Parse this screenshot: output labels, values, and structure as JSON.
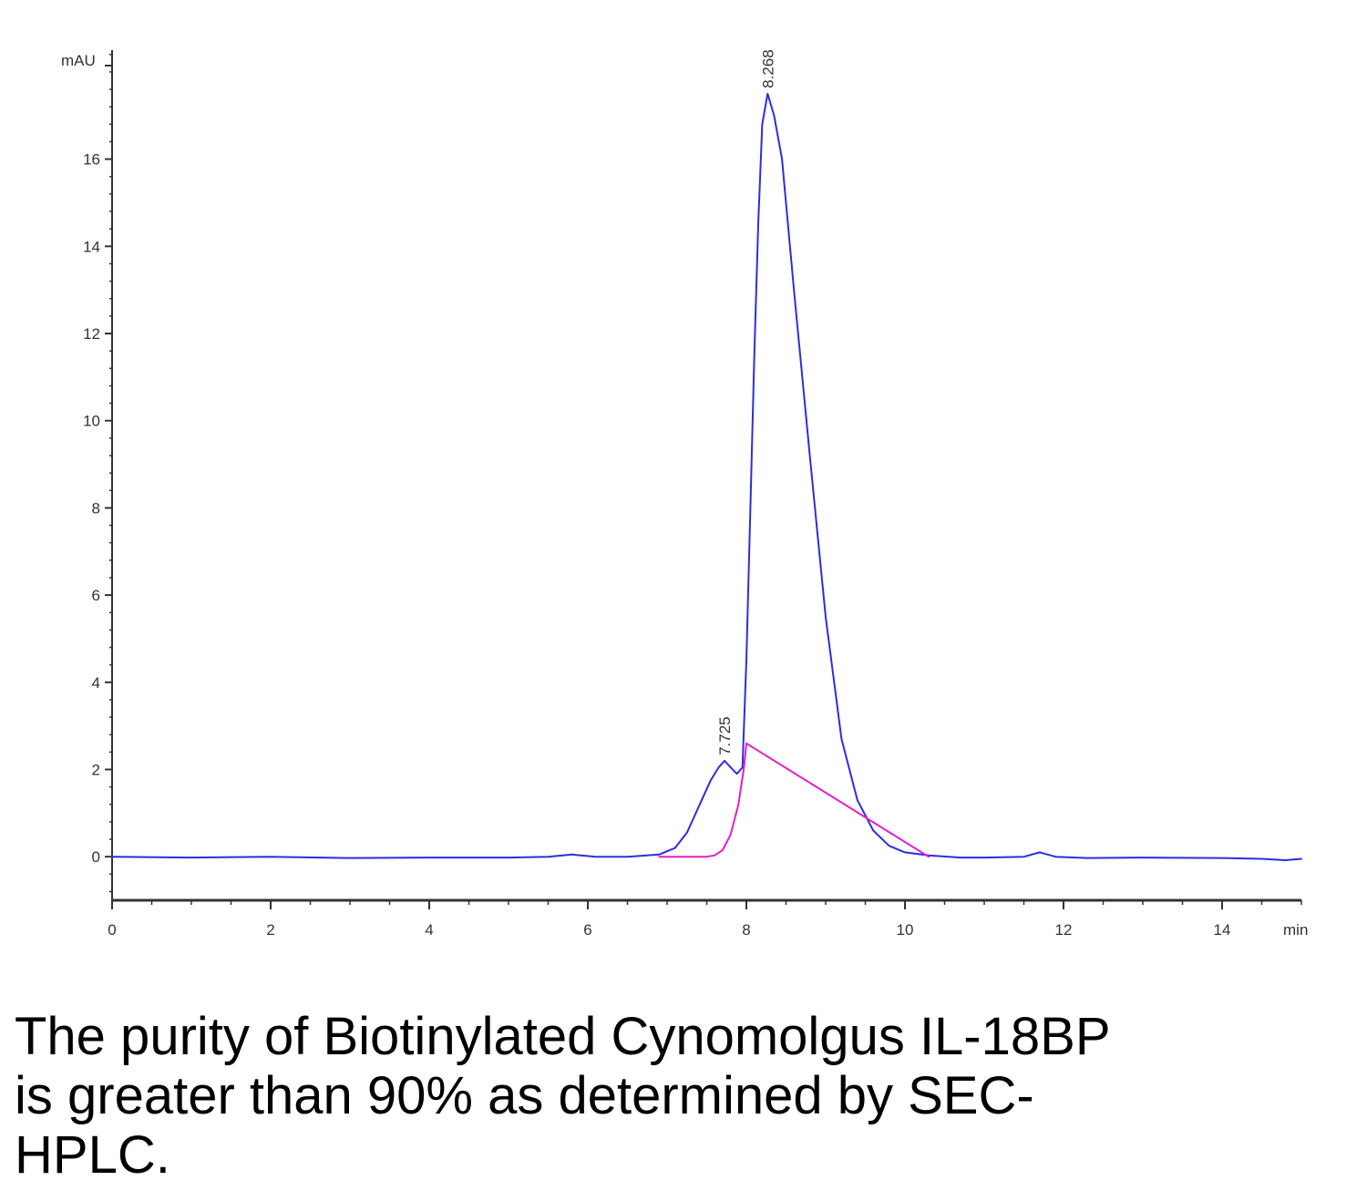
{
  "chart_data": {
    "type": "line",
    "x_unit": "min",
    "y_unit": "mAU",
    "xlim": [
      0,
      15
    ],
    "ylim": [
      -1,
      18.5
    ],
    "x_ticks": [
      0,
      2,
      4,
      6,
      8,
      10,
      12,
      14
    ],
    "y_ticks": [
      0,
      2,
      4,
      6,
      8,
      10,
      12,
      14,
      16
    ],
    "grid": false,
    "colors": {
      "trace": "#2d2de0",
      "baseline": "#e020c8",
      "axis": "#333333"
    },
    "series": [
      {
        "role": "chromatogram",
        "x": [
          0,
          1,
          2,
          3,
          4,
          5,
          5.5,
          5.8,
          6.1,
          6.5,
          6.9,
          7.1,
          7.25,
          7.4,
          7.55,
          7.65,
          7.725,
          7.8,
          7.88,
          7.95,
          8.0,
          8.05,
          8.1,
          8.15,
          8.2,
          8.268,
          8.35,
          8.45,
          8.6,
          8.8,
          9.0,
          9.2,
          9.4,
          9.6,
          9.8,
          10.0,
          10.3,
          10.7,
          11.0,
          11.5,
          11.7,
          11.9,
          12.3,
          13.0,
          14.0,
          14.5,
          14.8,
          15.0
        ],
        "y": [
          0.0,
          -0.02,
          0.0,
          -0.03,
          -0.02,
          -0.02,
          0.0,
          0.05,
          0.0,
          0.0,
          0.05,
          0.2,
          0.55,
          1.15,
          1.75,
          2.05,
          2.2,
          2.05,
          1.9,
          2.05,
          4.5,
          8.0,
          11.5,
          14.5,
          16.8,
          17.5,
          17.0,
          16.0,
          13.0,
          9.2,
          5.5,
          2.7,
          1.3,
          0.6,
          0.25,
          0.1,
          0.03,
          -0.02,
          -0.02,
          0.0,
          0.1,
          0.0,
          -0.03,
          -0.02,
          -0.03,
          -0.05,
          -0.08,
          -0.05
        ]
      },
      {
        "role": "integration-baseline",
        "x": [
          6.9,
          7.5,
          7.6,
          7.7,
          7.8,
          7.9,
          7.97,
          8.0,
          10.3
        ],
        "y": [
          0.0,
          0.0,
          0.03,
          0.15,
          0.5,
          1.2,
          2.05,
          2.6,
          0.0
        ]
      }
    ],
    "peaks": [
      {
        "label": "7.725",
        "x": 7.725,
        "y": 2.2
      },
      {
        "label": "8.268",
        "x": 8.268,
        "y": 17.5
      }
    ]
  },
  "caption": {
    "lines": [
      "The purity of Biotinylated Cynomolgus IL-18BP",
      "is greater than 90% as determined by SEC-",
      "HPLC."
    ]
  }
}
